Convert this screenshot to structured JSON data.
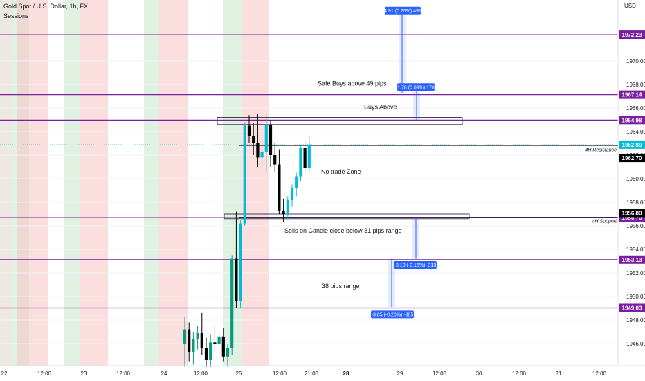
{
  "header": {
    "title": "Gold Spot / U.S. Dollar, 1h, FX",
    "subtitle": "Sessions",
    "unit_label": "USD"
  },
  "chart_data": {
    "type": "candlestick",
    "ylim": [
      1944,
      1975
    ],
    "y_ticks": [
      1946,
      1948,
      1950,
      1952,
      1954,
      1956,
      1958,
      1960,
      1962,
      1964,
      1966,
      1968,
      1970
    ],
    "x_ticks": [
      {
        "label": "22",
        "bold": false
      },
      {
        "label": "12:00",
        "bold": false
      },
      {
        "label": "23",
        "bold": false
      },
      {
        "label": "12:00",
        "bold": false
      },
      {
        "label": "24",
        "bold": false
      },
      {
        "label": "12:00",
        "bold": false
      },
      {
        "label": "25",
        "bold": false
      },
      {
        "label": "12:00",
        "bold": false
      },
      {
        "label": "21:00",
        "bold": false
      },
      {
        "label": "28",
        "bold": true
      },
      {
        "label": "29",
        "bold": false
      },
      {
        "label": "12:00",
        "bold": false
      },
      {
        "label": "30",
        "bold": false
      },
      {
        "label": "12:00",
        "bold": false
      },
      {
        "label": "31",
        "bold": false
      },
      {
        "label": "12:00",
        "bold": false
      }
    ],
    "levels": [
      {
        "value": 1972.23,
        "label": "1972.23"
      },
      {
        "value": 1967.14,
        "label": "1967.14"
      },
      {
        "value": 1964.98,
        "label": "1964.98"
      },
      {
        "value": 1956.7,
        "label": "1956.70"
      },
      {
        "value": 1953.13,
        "label": "1953.13"
      },
      {
        "value": 1949.03,
        "label": "1949.03"
      }
    ],
    "price_tags": [
      {
        "value": 1962.89,
        "label": "1962.89",
        "color": "#00bcd4"
      },
      {
        "value": 1962.7,
        "label": "1962.70",
        "color": "#000000"
      },
      {
        "value": 1956.8,
        "label": "1956.80",
        "color": "#000000"
      }
    ],
    "zones": [
      {
        "label": "4H Resistance",
        "value": 1962.8
      },
      {
        "label": "4H Support",
        "value": 1956.75
      }
    ],
    "annotations": [
      {
        "text": "Safe Buys above 49 pips",
        "value": 1967.9
      },
      {
        "text": "Buys Above",
        "value": 1965.9
      },
      {
        "text": "No trade  Zone",
        "value": 1960.4
      },
      {
        "text": "Sells on Candle close below 31 pips range",
        "value": 1955.4
      },
      {
        "text": "38 pips range",
        "value": 1950.7
      }
    ],
    "measurements": [
      {
        "label": "4.91 (0.25%) 491"
      },
      {
        "label": "1.78 (0.09%) 178"
      },
      {
        "label": "-3.13 (-0.16%) -313"
      },
      {
        "label": "-3.85 (-0.20%) -385"
      }
    ],
    "candles": [
      {
        "o": 1946.0,
        "h": 1948.3,
        "l": 1944.0,
        "c": 1947.2
      },
      {
        "o": 1947.2,
        "h": 1947.8,
        "l": 1944.5,
        "c": 1945.3
      },
      {
        "o": 1945.3,
        "h": 1947.0,
        "l": 1944.2,
        "c": 1946.4
      },
      {
        "o": 1946.4,
        "h": 1947.5,
        "l": 1945.5,
        "c": 1946.9
      },
      {
        "o": 1946.9,
        "h": 1948.6,
        "l": 1945.0,
        "c": 1945.6
      },
      {
        "o": 1945.6,
        "h": 1946.5,
        "l": 1944.0,
        "c": 1944.6
      },
      {
        "o": 1944.6,
        "h": 1946.8,
        "l": 1944.0,
        "c": 1946.1
      },
      {
        "o": 1946.1,
        "h": 1947.5,
        "l": 1945.5,
        "c": 1946.0
      },
      {
        "o": 1946.0,
        "h": 1947.0,
        "l": 1945.2,
        "c": 1946.6
      },
      {
        "o": 1946.6,
        "h": 1947.3,
        "l": 1944.5,
        "c": 1944.9
      },
      {
        "o": 1944.9,
        "h": 1946.0,
        "l": 1944.0,
        "c": 1945.6
      },
      {
        "o": 1945.6,
        "h": 1953.5,
        "l": 1945.0,
        "c": 1953.2
      },
      {
        "o": 1953.2,
        "h": 1957.2,
        "l": 1949.0,
        "c": 1949.6
      },
      {
        "o": 1949.6,
        "h": 1956.5,
        "l": 1949.0,
        "c": 1956.2
      },
      {
        "o": 1956.2,
        "h": 1964.8,
        "l": 1956.0,
        "c": 1964.5
      },
      {
        "o": 1964.5,
        "h": 1965.4,
        "l": 1963.0,
        "c": 1963.6
      },
      {
        "o": 1963.6,
        "h": 1964.7,
        "l": 1962.0,
        "c": 1963.0
      },
      {
        "o": 1963.0,
        "h": 1965.5,
        "l": 1961.0,
        "c": 1961.8
      },
      {
        "o": 1961.8,
        "h": 1963.5,
        "l": 1961.0,
        "c": 1962.3
      },
      {
        "o": 1962.3,
        "h": 1965.5,
        "l": 1960.5,
        "c": 1964.6
      },
      {
        "o": 1964.6,
        "h": 1965.0,
        "l": 1961.0,
        "c": 1962.0
      },
      {
        "o": 1962.0,
        "h": 1963.0,
        "l": 1960.5,
        "c": 1961.2
      },
      {
        "o": 1961.2,
        "h": 1962.5,
        "l": 1957.0,
        "c": 1957.3
      },
      {
        "o": 1957.3,
        "h": 1958.3,
        "l": 1956.3,
        "c": 1957.0
      },
      {
        "o": 1957.0,
        "h": 1958.5,
        "l": 1956.6,
        "c": 1958.2
      },
      {
        "o": 1958.2,
        "h": 1959.5,
        "l": 1957.6,
        "c": 1959.2
      },
      {
        "o": 1959.2,
        "h": 1960.5,
        "l": 1958.5,
        "c": 1960.2
      },
      {
        "o": 1960.2,
        "h": 1962.8,
        "l": 1959.8,
        "c": 1962.6
      },
      {
        "o": 1962.6,
        "h": 1963.2,
        "l": 1960.5,
        "c": 1960.9
      },
      {
        "o": 1960.9,
        "h": 1963.6,
        "l": 1960.5,
        "c": 1962.9
      }
    ],
    "sessions_colors": {
      "red": "#f7c5c5",
      "green": "#c8e6c9",
      "grey": "#e0d6cc"
    },
    "level_color": "#7b1fa2",
    "up_color": "#089981",
    "up_color_bright": "#00bcd4",
    "down_color": "#000000",
    "measure_color": "#2962ff"
  }
}
